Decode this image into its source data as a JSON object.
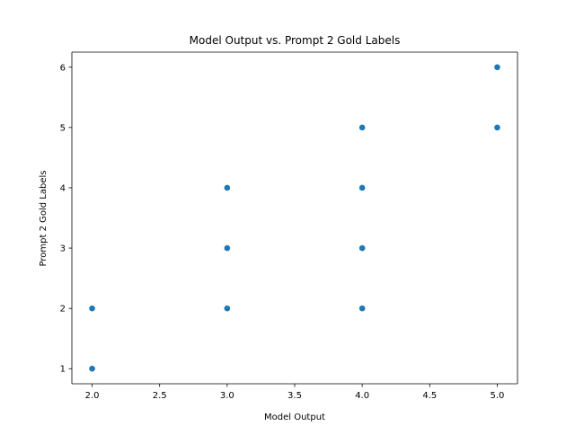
{
  "chart_data": {
    "type": "scatter",
    "title": "Model Output vs. Prompt 2 Gold Labels",
    "xlabel": "Model Output",
    "ylabel": "Prompt 2 Gold Labels",
    "xlim": [
      1.85,
      5.15
    ],
    "ylim": [
      0.75,
      6.25
    ],
    "x_ticks": [
      2.0,
      2.5,
      3.0,
      3.5,
      4.0,
      4.5,
      5.0
    ],
    "x_tick_labels": [
      "2.0",
      "2.5",
      "3.0",
      "3.5",
      "4.0",
      "4.5",
      "5.0"
    ],
    "y_ticks": [
      1,
      2,
      3,
      4,
      5,
      6
    ],
    "y_tick_labels": [
      "1",
      "2",
      "3",
      "4",
      "5",
      "6"
    ],
    "grid": false,
    "legend": "none",
    "series": [
      {
        "color": "#1f77b4",
        "points": [
          {
            "x": 2,
            "y": 1
          },
          {
            "x": 2,
            "y": 2
          },
          {
            "x": 3,
            "y": 2
          },
          {
            "x": 3,
            "y": 3
          },
          {
            "x": 3,
            "y": 4
          },
          {
            "x": 4,
            "y": 2
          },
          {
            "x": 4,
            "y": 3
          },
          {
            "x": 4,
            "y": 4
          },
          {
            "x": 4,
            "y": 5
          },
          {
            "x": 5,
            "y": 5
          },
          {
            "x": 5,
            "y": 6
          }
        ]
      }
    ]
  }
}
